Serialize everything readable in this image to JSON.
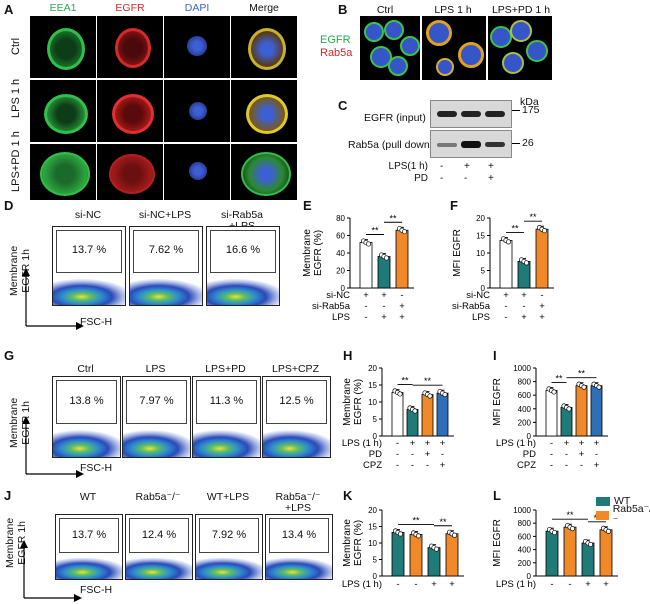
{
  "panel_letters": [
    "A",
    "B",
    "C",
    "D",
    "E",
    "F",
    "G",
    "H",
    "I",
    "J",
    "K",
    "L"
  ],
  "panelA": {
    "columns": [
      "EEA1",
      "EGFR",
      "DAPI",
      "Merge"
    ],
    "column_colors": [
      "#2aa84a",
      "#d6262b",
      "#3c63c8",
      "#111111"
    ],
    "rows": [
      "Ctrl",
      "LPS 1 h",
      "LPS+PD 1 h"
    ]
  },
  "panelB": {
    "columns": [
      "Ctrl",
      "LPS  1 h",
      "LPS+PD  1 h"
    ],
    "legend": [
      {
        "text": "EGFR",
        "color": "#2aa84a"
      },
      {
        "text": "Rab5a",
        "color": "#d6262b"
      }
    ]
  },
  "panelC": {
    "unit": "kDa",
    "bands": [
      {
        "label": "EGFR (input)",
        "kda": "175"
      },
      {
        "label": "Rab5a (pull down)",
        "kda": "26"
      }
    ],
    "conditions": [
      {
        "name": "LPS(1 h)",
        "vals": [
          "-",
          "+",
          "+"
        ]
      },
      {
        "name": "PD",
        "vals": [
          "-",
          "-",
          "+"
        ]
      }
    ]
  },
  "panelD": {
    "ylabel": "Membrane\nEGFR 1h",
    "xlabel": "FSC-H",
    "plots": [
      {
        "title": "si-NC",
        "pct": "13.7  %"
      },
      {
        "title": "si-NC+LPS",
        "pct": "7.62  %"
      },
      {
        "title": "si-Rab5a\n+LPS",
        "pct": "16.6  %"
      }
    ]
  },
  "panelG": {
    "ylabel": "Membrane\nEGFR 1h",
    "xlabel": "FSC-H",
    "plots": [
      {
        "title": "Ctrl",
        "pct": "13.8  %"
      },
      {
        "title": "LPS",
        "pct": "7.97  %"
      },
      {
        "title": "LPS+PD",
        "pct": "11.3  %"
      },
      {
        "title": "LPS+CPZ",
        "pct": "12.5  %"
      }
    ]
  },
  "panelJ": {
    "ylabel": "Membrane\nEGFR 1h",
    "xlabel": "FSC-H",
    "plots": [
      {
        "title": "WT",
        "pct": "13.7  %"
      },
      {
        "title": "Rab5a⁻/⁻",
        "pct": "12.4  %"
      },
      {
        "title": "WT+LPS",
        "pct": "7.92  %"
      },
      {
        "title": "Rab5a⁻/⁻\n+LPS",
        "pct": "13.4  %"
      }
    ]
  },
  "legendL": [
    {
      "name": "WT",
      "color": "#1f7a78"
    },
    {
      "name": "Rab5a⁻/⁻",
      "color": "#f0892a"
    }
  ],
  "significance": "**",
  "chart_data": [
    {
      "id": "E",
      "type": "bar",
      "ylabel": "Membrane\nEGFR (%)",
      "ylim": [
        0,
        80
      ],
      "yticks": [
        0,
        20,
        40,
        60,
        80
      ],
      "values": [
        52,
        36,
        66
      ],
      "colors": [
        "#ffffff",
        "#1f7a78",
        "#f0892a"
      ],
      "conditions": [
        {
          "name": "si-NC",
          "vals": [
            "+",
            "+",
            "-"
          ]
        },
        {
          "name": "si-Rab5a",
          "vals": [
            "-",
            "-",
            "+"
          ]
        },
        {
          "name": "LPS",
          "vals": [
            "-",
            "+",
            "+"
          ]
        }
      ],
      "sig": [
        {
          "from": 0,
          "to": 1,
          "text": "**"
        },
        {
          "from": 1,
          "to": 2,
          "text": "**"
        }
      ]
    },
    {
      "id": "F",
      "type": "bar",
      "ylabel": "MFI EGFR",
      "ylim": [
        0,
        20
      ],
      "yticks": [
        0,
        5,
        10,
        15,
        20
      ],
      "values": [
        13.6,
        7.6,
        16.8
      ],
      "colors": [
        "#ffffff",
        "#1f7a78",
        "#f0892a"
      ],
      "conditions": [
        {
          "name": "si-NC",
          "vals": [
            "+",
            "+",
            "-"
          ]
        },
        {
          "name": "si-Rab5a",
          "vals": [
            "-",
            "-",
            "+"
          ]
        },
        {
          "name": "LPS",
          "vals": [
            "-",
            "+",
            "+"
          ]
        }
      ],
      "sig": [
        {
          "from": 0,
          "to": 1,
          "text": "**"
        },
        {
          "from": 1,
          "to": 2,
          "text": "**"
        }
      ]
    },
    {
      "id": "H",
      "type": "bar",
      "ylabel": "Membrane\nEGFR (%)",
      "ylim": [
        0,
        20
      ],
      "yticks": [
        0,
        5,
        10,
        15,
        20
      ],
      "values": [
        12.8,
        7.8,
        12.2,
        12.6
      ],
      "colors": [
        "#ffffff",
        "#1f7a78",
        "#f0892a",
        "#2f6fb8"
      ],
      "conditions": [
        {
          "name": "LPS (1 h)",
          "vals": [
            "-",
            "+",
            "+",
            "+"
          ]
        },
        {
          "name": "PD",
          "vals": [
            "-",
            "-",
            "+",
            "-"
          ]
        },
        {
          "name": "CPZ",
          "vals": [
            "-",
            "-",
            "-",
            "+"
          ]
        }
      ],
      "sig": [
        {
          "from": 0,
          "to": 1,
          "text": "**"
        },
        {
          "from": 1,
          "to": 3,
          "text": "**"
        }
      ]
    },
    {
      "id": "I",
      "type": "bar",
      "ylabel": "MFI EGFR",
      "ylim": [
        0,
        1000
      ],
      "yticks": [
        0,
        200,
        400,
        600,
        800,
        1000
      ],
      "values": [
        670,
        420,
        740,
        740
      ],
      "colors": [
        "#ffffff",
        "#1f7a78",
        "#f0892a",
        "#2f6fb8"
      ],
      "conditions": [
        {
          "name": "LPS (1 h)",
          "vals": [
            "-",
            "+",
            "+",
            "+"
          ]
        },
        {
          "name": "PD",
          "vals": [
            "-",
            "-",
            "+",
            "-"
          ]
        },
        {
          "name": "CPZ",
          "vals": [
            "-",
            "-",
            "-",
            "+"
          ]
        }
      ],
      "sig": [
        {
          "from": 0,
          "to": 1,
          "text": "**"
        },
        {
          "from": 1,
          "to": 3,
          "text": "**"
        }
      ]
    },
    {
      "id": "K",
      "type": "bar",
      "ylabel": "Membrane\nEGFR (%)",
      "ylim": [
        0,
        20
      ],
      "yticks": [
        0,
        5,
        10,
        15,
        20
      ],
      "values": [
        13.2,
        12.6,
        8.6,
        12.8
      ],
      "colors": [
        "#1f7a78",
        "#f0892a",
        "#1f7a78",
        "#f0892a"
      ],
      "conditions": [
        {
          "name": "LPS (1 h)",
          "vals": [
            "-",
            "-",
            "+",
            "+"
          ]
        }
      ],
      "sig": [
        {
          "from": 0,
          "to": 2,
          "text": "**"
        },
        {
          "from": 2,
          "to": 3,
          "text": "**"
        }
      ]
    },
    {
      "id": "L",
      "type": "bar",
      "ylabel": "MFI EGFR",
      "ylim": [
        0,
        1000
      ],
      "yticks": [
        0,
        200,
        400,
        600,
        800,
        1000
      ],
      "values": [
        680,
        740,
        500,
        700
      ],
      "colors": [
        "#1f7a78",
        "#f0892a",
        "#1f7a78",
        "#f0892a"
      ],
      "conditions": [
        {
          "name": "LPS (1 h)",
          "vals": [
            "-",
            "-",
            "+",
            "+"
          ]
        }
      ],
      "sig": [
        {
          "from": 0,
          "to": 2,
          "text": "**"
        },
        {
          "from": 2,
          "to": 3,
          "text": "**"
        }
      ]
    }
  ]
}
